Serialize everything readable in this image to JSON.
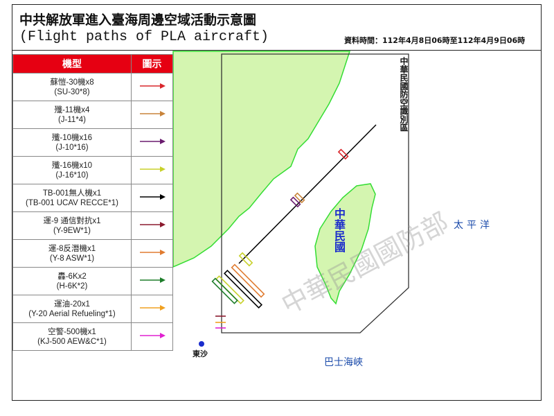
{
  "title": "中共解放軍進入臺海周邊空域活動示意圖",
  "subtitle": "(Flight paths of PLA aircraft)",
  "period": "資料時間：112年4月8日06時至112年4月9日06時",
  "legend": {
    "header_type": "機型",
    "header_icon": "圖示",
    "items": [
      {
        "zh": "蘇愷-30機x8",
        "en": "(SU-30*8)",
        "color": "#d9262b"
      },
      {
        "zh": "殲-11機x4",
        "en": "(J-11*4)",
        "color": "#c8833a"
      },
      {
        "zh": "殲-10機x16",
        "en": "(J-10*16)",
        "color": "#6a1b6e"
      },
      {
        "zh": "殲-16機x10",
        "en": "(J-16*10)",
        "color": "#c8d12a"
      },
      {
        "zh": "TB-001無人機x1",
        "en": "(TB-001 UCAV RECCE*1)",
        "color": "#000000"
      },
      {
        "zh": "運-9 通信對抗x1",
        "en": "(Y-9EW*1)",
        "color": "#8b1a2e"
      },
      {
        "zh": "運-8反潛機x1",
        "en": "(Y-8 ASW*1)",
        "color": "#e07b30"
      },
      {
        "zh": "轟-6Kx2",
        "en": "(H-6K*2)",
        "color": "#1e7d2a"
      },
      {
        "zh": "運油-20x1",
        "en": "(Y-20 Aerial Refueling*1)",
        "color": "#f0a020"
      },
      {
        "zh": "空警-500機x1",
        "en": "(KJ-500 AEW&C*1)",
        "color": "#e020d0"
      }
    ]
  },
  "map": {
    "adiz_label": "中華民國防空識別區",
    "taiwan_label": "中華民國",
    "pacific_label": "太平洋",
    "bashi_label": "巴士海峽",
    "dongsha_label": "東沙",
    "watermark": "中華民國國防部",
    "land_color": "#d4f5b0",
    "coast_color": "#33dd33"
  }
}
